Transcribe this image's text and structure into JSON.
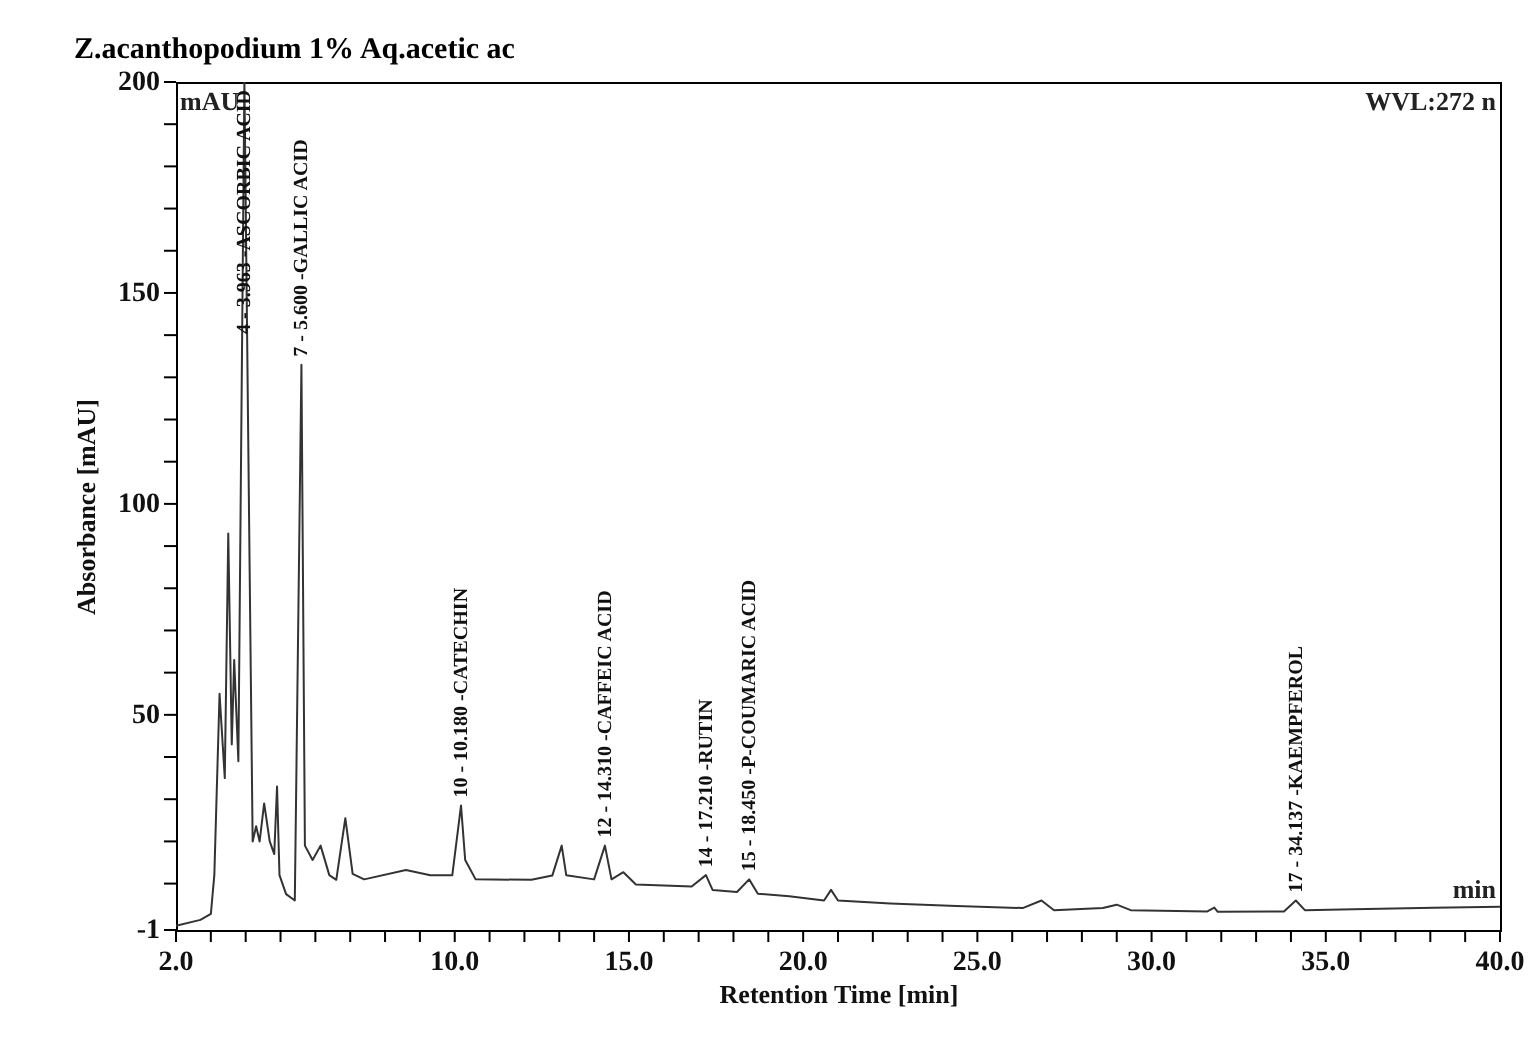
{
  "chart_data": {
    "type": "line",
    "title": "Z.acanthopodium 1% Aq.acetic ac",
    "xlabel": "Retention Time [min]",
    "ylabel": "Absorbance [mAU]",
    "series": [
      {
        "color": "#333333",
        "x": [
          2.0,
          2.7,
          3.0,
          3.1,
          3.25,
          3.4,
          3.5,
          3.6,
          3.67,
          3.79,
          3.963,
          4.11,
          4.2,
          4.3,
          4.4,
          4.53,
          4.69,
          4.82,
          4.9,
          4.97,
          5.16,
          5.41,
          5.6,
          5.7,
          5.92,
          6.15,
          6.4,
          6.6,
          6.86,
          7.07,
          7.4,
          8.6,
          9.3,
          9.93,
          10.18,
          10.3,
          10.6,
          12.2,
          12.8,
          13.07,
          13.2,
          14.0,
          14.31,
          14.5,
          14.84,
          15.2,
          16.8,
          17.21,
          17.4,
          18.1,
          18.45,
          18.7,
          19.6,
          20.6,
          20.8,
          21.0,
          22.5,
          24.4,
          26.3,
          26.84,
          27.2,
          28.6,
          29.0,
          29.4,
          31.6,
          31.8,
          31.9,
          33.8,
          34.14,
          34.4,
          35.8,
          38.1,
          40.0
        ],
        "values": [
          0,
          1.4,
          2.8,
          12,
          55,
          35,
          93,
          43,
          63,
          39,
          200,
          87,
          20,
          23.6,
          20,
          29,
          20,
          17,
          33,
          12,
          7.5,
          6,
          133,
          19,
          15.6,
          19,
          12,
          10.9,
          25.5,
          12.3,
          11,
          13.2,
          12,
          12,
          28.5,
          15.6,
          11,
          10.9,
          11.9,
          19,
          12,
          11,
          19,
          11,
          12.7,
          9.8,
          9.3,
          12,
          8.5,
          8,
          11,
          7.6,
          7,
          6,
          8.5,
          6,
          5.3,
          4.7,
          4.2,
          6,
          3.7,
          4.2,
          5,
          3.7,
          3.4,
          4.3,
          3.3,
          3.4,
          6,
          3.7,
          3.9,
          4.3,
          4.5
        ]
      }
    ],
    "xlim": [
      2,
      40
    ],
    "ylim": [
      -1,
      200
    ],
    "xticks": [
      {
        "value": 2,
        "label": "2.0"
      },
      {
        "value": 3,
        "label": null
      },
      {
        "value": 4,
        "label": null
      },
      {
        "value": 5,
        "label": null
      },
      {
        "value": 6,
        "label": null
      },
      {
        "value": 7,
        "label": null
      },
      {
        "value": 8,
        "label": null
      },
      {
        "value": 9,
        "label": null
      },
      {
        "value": 10,
        "label": "10.0"
      },
      {
        "value": 11,
        "label": null
      },
      {
        "value": 12,
        "label": null
      },
      {
        "value": 13,
        "label": null
      },
      {
        "value": 14,
        "label": null
      },
      {
        "value": 15,
        "label": "15.0"
      },
      {
        "value": 16,
        "label": null
      },
      {
        "value": 17,
        "label": null
      },
      {
        "value": 18,
        "label": null
      },
      {
        "value": 19,
        "label": null
      },
      {
        "value": 20,
        "label": "20.0"
      },
      {
        "value": 21,
        "label": null
      },
      {
        "value": 22,
        "label": null
      },
      {
        "value": 23,
        "label": null
      },
      {
        "value": 24,
        "label": null
      },
      {
        "value": 25,
        "label": "25.0"
      },
      {
        "value": 26,
        "label": null
      },
      {
        "value": 27,
        "label": null
      },
      {
        "value": 28,
        "label": null
      },
      {
        "value": 29,
        "label": null
      },
      {
        "value": 30,
        "label": "30.0"
      },
      {
        "value": 31,
        "label": null
      },
      {
        "value": 32,
        "label": null
      },
      {
        "value": 33,
        "label": null
      },
      {
        "value": 34,
        "label": null
      },
      {
        "value": 35,
        "label": "35.0"
      },
      {
        "value": 36,
        "label": null
      },
      {
        "value": 37,
        "label": null
      },
      {
        "value": 38,
        "label": null
      },
      {
        "value": 39,
        "label": null
      },
      {
        "value": 40,
        "label": "40.0"
      }
    ],
    "yticks": [
      -1,
      {
        "value": 10,
        "label": null
      },
      {
        "value": 20,
        "label": null
      },
      {
        "value": 30,
        "label": null
      },
      {
        "value": 40,
        "label": null
      },
      50,
      {
        "value": 60,
        "label": null
      },
      {
        "value": 70,
        "label": null
      },
      {
        "value": 80,
        "label": null
      },
      {
        "value": 90,
        "label": null
      },
      100,
      {
        "value": 110,
        "label": null
      },
      {
        "value": 120,
        "label": null
      },
      {
        "value": 130,
        "label": null
      },
      {
        "value": 140,
        "label": null
      },
      150,
      {
        "value": 160,
        "label": null
      },
      {
        "value": 170,
        "label": null
      },
      {
        "value": 180,
        "label": null
      },
      {
        "value": 190,
        "label": null
      },
      200
    ],
    "grid": false,
    "marker": "none",
    "line_style": "solid",
    "annotations": [
      "WVL:272 n",
      "mAU",
      "min",
      {
        "text": "4 - 3.963 -ASCORBIC ACID",
        "x": 3.963,
        "y": 200
      },
      {
        "text": "7 - 5.600 -GALLIC ACID",
        "x": 5.6,
        "y": 133
      },
      {
        "text": "10 - 10.180 -CATECHIN",
        "x": 10.18,
        "y": 28.5
      },
      {
        "text": "12 - 14.310 -CAFFEIC ACID",
        "x": 14.31,
        "y": 19
      },
      {
        "text": "14 - 17.210 -RUTIN",
        "x": 17.21,
        "y": 12
      },
      {
        "text": "15 - 18.450 -P-COUMARIC ACID",
        "x": 18.45,
        "y": 11
      },
      {
        "text": "17 - 34.137 -KAEMPFEROL",
        "x": 34.137,
        "y": 6
      }
    ]
  }
}
